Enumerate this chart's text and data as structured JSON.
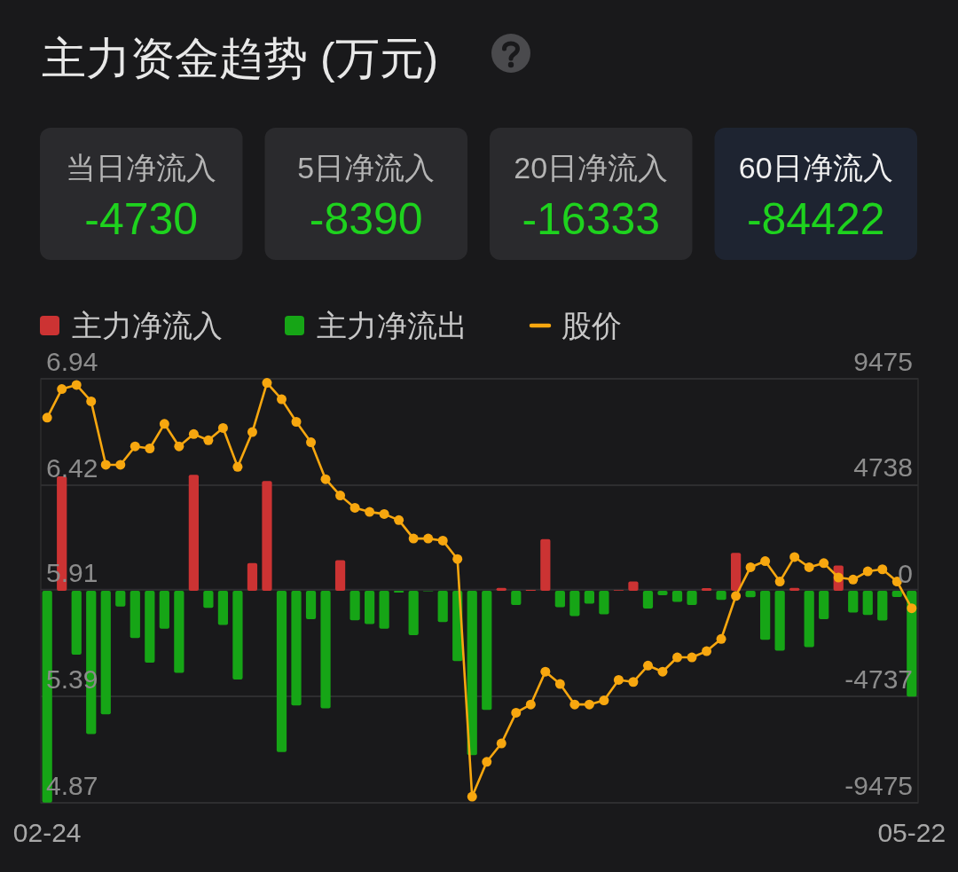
{
  "chart_data": [
    {
      "type": "other",
      "title": "主力资金趋势 (万元)",
      "categories": [
        "当日净流入",
        "5日净流入",
        "20日净流入",
        "60日净流入"
      ],
      "values": [
        -4730,
        -8390,
        -16333,
        -84422
      ],
      "data_labels": true,
      "colors": [
        "#2a2a2d",
        "#2a2a2d",
        "#2a2a2d",
        "#1e2431"
      ]
    },
    {
      "type": "bar",
      "stacked": true,
      "legend": "top left",
      "grid": "y",
      "categories": [
        "02-24",
        null,
        null,
        null,
        null,
        null,
        null,
        null,
        null,
        null,
        null,
        null,
        null,
        null,
        null,
        null,
        null,
        null,
        null,
        null,
        null,
        null,
        null,
        null,
        null,
        null,
        null,
        null,
        null,
        null,
        null,
        null,
        null,
        null,
        null,
        null,
        null,
        null,
        null,
        null,
        null,
        null,
        null,
        null,
        null,
        null,
        null,
        null,
        null,
        null,
        null,
        null,
        null,
        null,
        null,
        null,
        null,
        null,
        null,
        "05-22"
      ],
      "ylim": [
        4.87,
        6.94
      ],
      "yticks": [
        4.87,
        5.39,
        5.91,
        6.42,
        6.94
      ],
      "y2lim": [
        -9475,
        9475
      ],
      "y2ticks": [
        -9475,
        -4737,
        0,
        4738,
        9475
      ],
      "series": [
        {
          "name": "主力净流入",
          "color": "#cc3333",
          "axis": "y2",
          "values": [
            null,
            5110,
            null,
            null,
            null,
            null,
            null,
            null,
            null,
            null,
            5180,
            null,
            null,
            null,
            1240,
            4910,
            null,
            null,
            null,
            null,
            1370,
            null,
            null,
            null,
            null,
            null,
            null,
            null,
            null,
            null,
            null,
            130,
            null,
            40,
            2310,
            null,
            null,
            null,
            null,
            30,
            420,
            null,
            null,
            null,
            null,
            120,
            null,
            1690,
            null,
            null,
            null,
            130,
            null,
            null,
            1130,
            null,
            null,
            null,
            null,
            null
          ]
        },
        {
          "name": "主力净流出",
          "color": "#16a516",
          "axis": "y2",
          "values": [
            -9470,
            null,
            -2850,
            -6400,
            -5520,
            -700,
            -2110,
            -3210,
            -1690,
            -3670,
            null,
            -760,
            -1530,
            -3960,
            null,
            null,
            -7210,
            -5120,
            -1270,
            -5250,
            null,
            -1320,
            -1490,
            -1690,
            -80,
            -1980,
            -20,
            -1400,
            -3140,
            -7340,
            -5320,
            null,
            -630,
            null,
            null,
            -730,
            -1130,
            -570,
            -1050,
            null,
            null,
            -790,
            -200,
            -500,
            -630,
            null,
            -410,
            null,
            -290,
            -2190,
            -2680,
            null,
            -2520,
            -1270,
            null,
            -970,
            -1080,
            -1330,
            -280,
            -4730
          ]
        },
        {
          "name": "股价",
          "type": "line",
          "color": "#f7a70f",
          "marker": "circle",
          "values": [
            6.75,
            6.89,
            6.91,
            6.83,
            6.52,
            6.52,
            6.61,
            6.6,
            6.72,
            6.61,
            6.67,
            6.64,
            6.7,
            6.51,
            6.68,
            6.92,
            6.84,
            6.73,
            6.63,
            6.45,
            6.37,
            6.31,
            6.29,
            6.28,
            6.25,
            6.16,
            6.16,
            6.15,
            6.06,
            4.9,
            5.07,
            5.16,
            5.31,
            5.35,
            5.51,
            5.45,
            5.35,
            5.35,
            5.37,
            5.47,
            5.46,
            5.54,
            5.51,
            5.58,
            5.58,
            5.61,
            5.67,
            5.88,
            6.02,
            6.05,
            5.95,
            6.07,
            6.02,
            6.04,
            5.97,
            5.96,
            6.0,
            6.01,
            5.95,
            5.82
          ]
        }
      ]
    }
  ]
}
